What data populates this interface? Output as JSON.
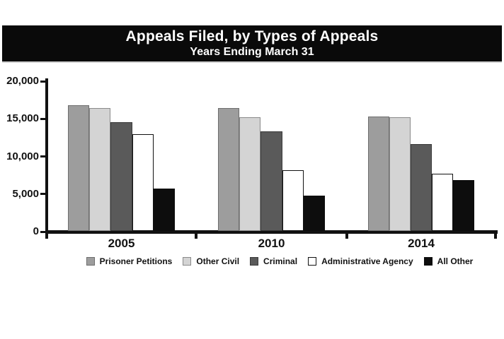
{
  "title": {
    "line1": "Appeals Filed, by Types of Appeals",
    "line2": "Years Ending March 31"
  },
  "chart_data": {
    "type": "bar",
    "title": "Appeals Filed, by Types of Appeals",
    "subtitle": "Years Ending March 31",
    "categories": [
      "2005",
      "2010",
      "2014"
    ],
    "series": [
      {
        "name": "Prisoner Petitions",
        "color": "#9d9d9d",
        "border": "#6e6e6e",
        "values": [
          16700,
          16300,
          15200
        ]
      },
      {
        "name": "Other Civil",
        "color": "#d4d4d4",
        "border": "#8a8a8a",
        "values": [
          16300,
          15100,
          15100
        ]
      },
      {
        "name": "Criminal",
        "color": "#5a5a5a",
        "border": "#3a3a3a",
        "values": [
          14500,
          13200,
          11550
        ]
      },
      {
        "name": "Administrative Agency",
        "color": "#ffffff",
        "border": "#111111",
        "values": [
          12900,
          8100,
          7650
        ]
      },
      {
        "name": "All Other",
        "color": "#0d0d0d",
        "border": "#0d0d0d",
        "values": [
          5650,
          4650,
          6750
        ]
      }
    ],
    "ylim": [
      0,
      20000
    ],
    "yticks": [
      0,
      5000,
      10000,
      15000,
      20000
    ],
    "ytick_labels": [
      "0",
      "5,000",
      "10,000",
      "15,000",
      "20,000"
    ],
    "grid": false,
    "legend_position": "bottom"
  },
  "colors": {
    "title_bg": "#0a0a0a",
    "title_fg": "#ffffff",
    "axis": "#111111"
  }
}
